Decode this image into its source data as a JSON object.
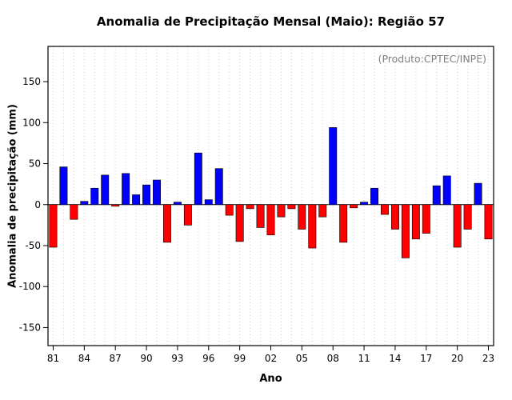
{
  "chart": {
    "title": "Anomalia de Precipitação Mensal (Maio): Região 57",
    "annotation": "(Produto:CPTEC/INPE)",
    "xlabel": "Ano",
    "ylabel": "Anomalia de precipitação (mm)"
  },
  "chart_data": {
    "type": "bar",
    "title": "Anomalia de Precipitação Mensal (Maio): Região 57",
    "annotation": "(Produto:CPTEC/INPE)",
    "xlabel": "Ano",
    "ylabel": "Anomalia de precipitação (mm)",
    "categories": [
      "81",
      "82",
      "83",
      "84",
      "85",
      "86",
      "87",
      "88",
      "89",
      "90",
      "91",
      "92",
      "93",
      "94",
      "95",
      "96",
      "97",
      "98",
      "99",
      "00",
      "01",
      "02",
      "03",
      "04",
      "05",
      "06",
      "07",
      "08",
      "09",
      "10",
      "11",
      "12",
      "13",
      "14",
      "15",
      "16",
      "17",
      "18",
      "19",
      "20",
      "21",
      "22",
      "23"
    ],
    "values": [
      -52,
      46,
      -18,
      4,
      20,
      36,
      -2,
      38,
      12,
      24,
      30,
      -46,
      3,
      -25,
      63,
      6,
      44,
      -13,
      -45,
      -5,
      -28,
      -37,
      -15,
      -5,
      -30,
      -53,
      -15,
      94,
      -46,
      -4,
      3,
      20,
      -12,
      -30,
      -65,
      -42,
      -35,
      23,
      35,
      -52,
      -30,
      26,
      -42
    ],
    "ylim": [
      -172,
      193
    ],
    "yticks": [
      -150,
      -100,
      -50,
      0,
      50,
      100,
      150
    ],
    "xtick_every": 3,
    "grid": "vertical-dotted",
    "legend": "none",
    "colors": {
      "positive": "#0000FF",
      "negative": "#FF0000",
      "bar_outline": "#000000",
      "gridline": "#cccccc",
      "annotation_text": "#7f7f7f"
    }
  }
}
